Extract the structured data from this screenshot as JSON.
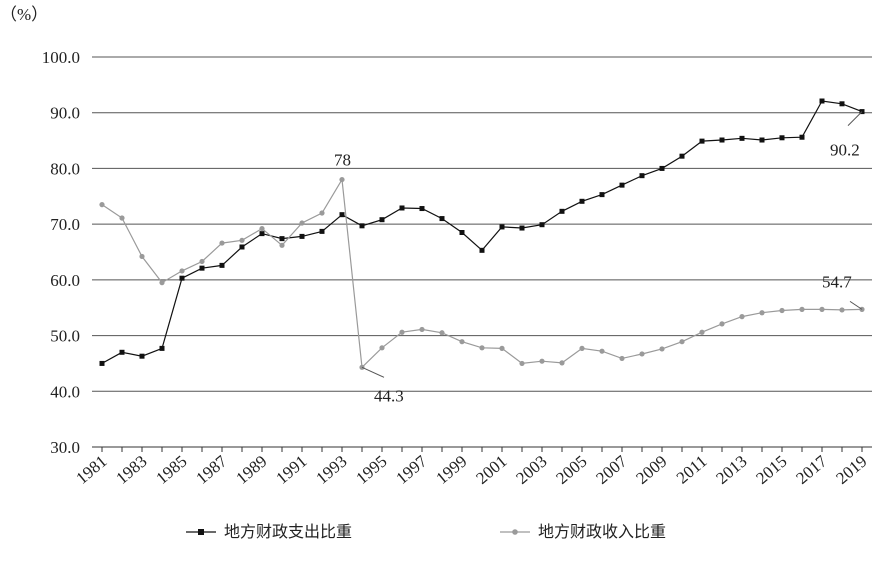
{
  "chart_data": {
    "type": "line",
    "unit_label": "（%）",
    "x": [
      1981,
      1982,
      1983,
      1984,
      1985,
      1986,
      1987,
      1988,
      1989,
      1990,
      1991,
      1992,
      1993,
      1994,
      1995,
      1996,
      1997,
      1998,
      1999,
      2000,
      2001,
      2002,
      2003,
      2004,
      2005,
      2006,
      2007,
      2008,
      2009,
      2010,
      2011,
      2012,
      2013,
      2014,
      2015,
      2016,
      2017,
      2018,
      2019
    ],
    "x_tick_labels": [
      "1981",
      "1983",
      "1985",
      "1987",
      "1989",
      "1991",
      "1993",
      "1995",
      "1997",
      "1999",
      "2001",
      "2003",
      "2005",
      "2007",
      "2009",
      "2011",
      "2013",
      "2015",
      "2017",
      "2019"
    ],
    "y_tick_labels": [
      "100.0",
      "90.0",
      "80.0",
      "70.0",
      "60.0",
      "50.0",
      "40.0",
      "30.0"
    ],
    "ylim": [
      30,
      100
    ],
    "grid": true,
    "legend_position": "bottom",
    "series": [
      {
        "name": "地方财政支出比重",
        "color": "#111111",
        "marker": "square",
        "values": [
          45.0,
          47.0,
          46.3,
          47.7,
          60.3,
          62.1,
          62.6,
          65.9,
          68.3,
          67.4,
          67.8,
          68.7,
          71.7,
          69.7,
          70.8,
          72.9,
          72.8,
          71.0,
          68.5,
          65.3,
          69.5,
          69.3,
          69.9,
          72.3,
          74.1,
          75.3,
          77.0,
          78.7,
          80.0,
          82.2,
          84.9,
          85.1,
          85.4,
          85.1,
          85.5,
          85.6,
          92.1,
          91.6,
          90.2
        ]
      },
      {
        "name": "地方财政收入比重",
        "color": "#9a9a9a",
        "marker": "circle",
        "values": [
          73.5,
          71.1,
          64.2,
          59.5,
          61.6,
          63.3,
          66.6,
          67.1,
          69.2,
          66.2,
          70.2,
          72.0,
          78.0,
          44.3,
          47.8,
          50.6,
          51.1,
          50.5,
          48.9,
          47.8,
          47.7,
          45.0,
          45.4,
          45.1,
          47.7,
          47.2,
          45.9,
          46.7,
          47.6,
          48.9,
          50.6,
          52.1,
          53.4,
          54.1,
          54.5,
          54.7,
          54.7,
          54.6,
          54.7
        ]
      }
    ],
    "annotations": [
      {
        "text": "78",
        "series": 1,
        "x": 1993
      },
      {
        "text": "44.3",
        "series": 1,
        "x": 1994
      },
      {
        "text": "90.2",
        "series": 0,
        "x": 2019
      },
      {
        "text": "54.7",
        "series": 1,
        "x": 2019
      }
    ]
  }
}
